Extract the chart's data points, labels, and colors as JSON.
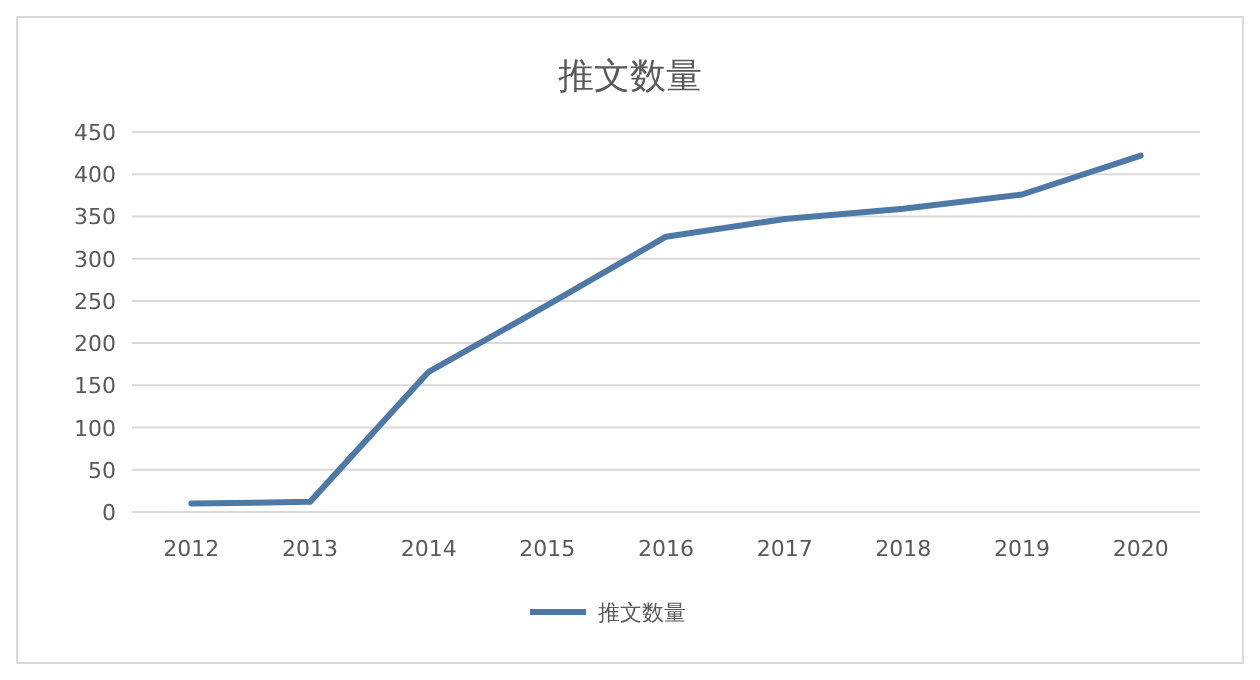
{
  "chart_data": {
    "type": "line",
    "title": "推文数量",
    "categories": [
      "2012",
      "2013",
      "2014",
      "2015",
      "2016",
      "2017",
      "2018",
      "2019",
      "2020"
    ],
    "series": [
      {
        "name": "推文数量",
        "color": "#4e79a7",
        "values": [
          10,
          12,
          166,
          245,
          326,
          347,
          359,
          376,
          422
        ]
      }
    ],
    "ylim": [
      0,
      450
    ],
    "yticks": [
      0,
      50,
      100,
      150,
      200,
      250,
      300,
      350,
      400,
      450
    ],
    "grid": "y",
    "legend": "bottom",
    "marker": "none",
    "line_style": "solid"
  }
}
